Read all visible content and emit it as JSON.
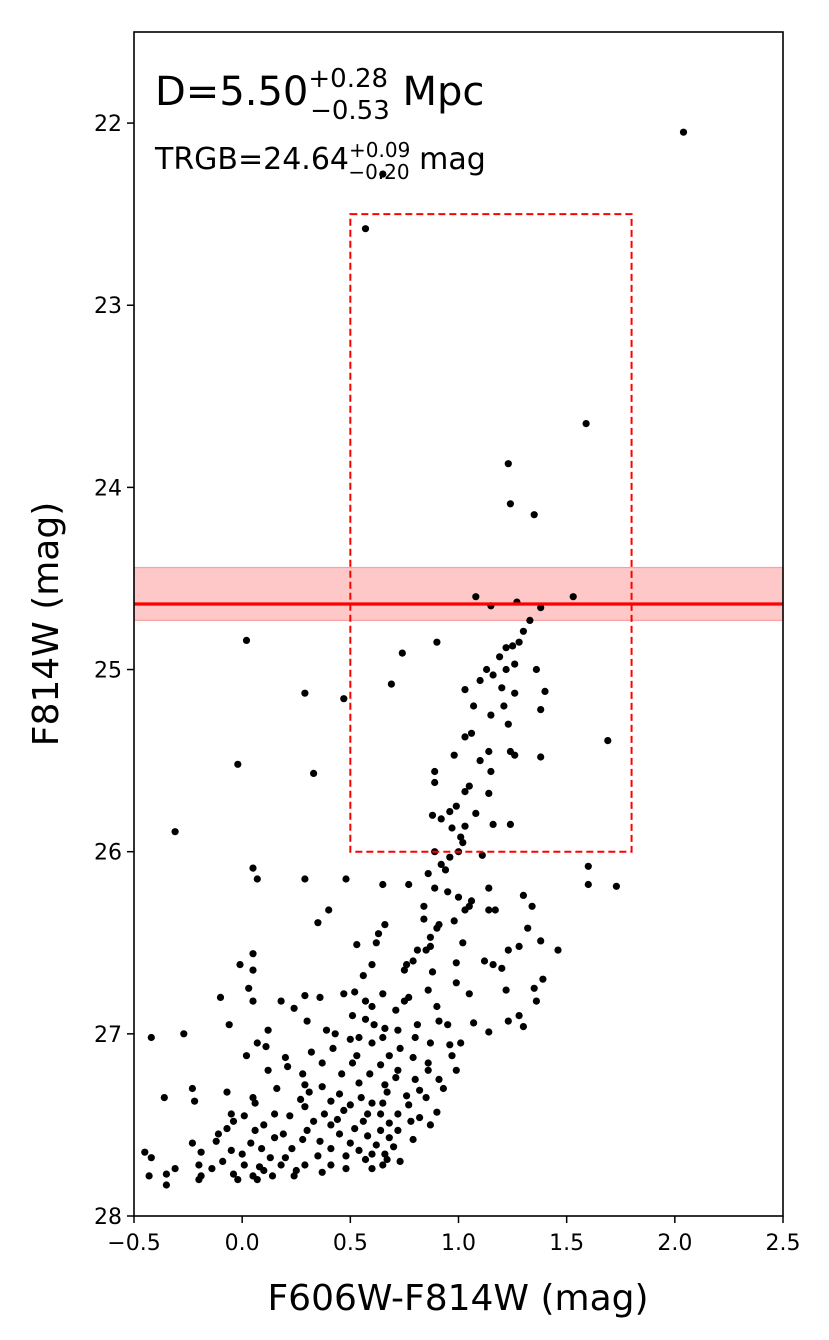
{
  "chart_data": {
    "type": "scatter",
    "title": "",
    "xlabel": "F606W-F814W (mag)",
    "ylabel": "F814W (mag)",
    "xlim": [
      -0.5,
      2.5
    ],
    "ylim": [
      28,
      21.5
    ],
    "y_inverted": true,
    "grid": false,
    "x_ticks": [
      -0.5,
      0.0,
      0.5,
      1.0,
      1.5,
      2.0,
      2.5
    ],
    "x_tick_labels": [
      "−0.5",
      "0.0",
      "0.5",
      "1.0",
      "1.5",
      "2.0",
      "2.5"
    ],
    "y_ticks": [
      22,
      23,
      24,
      25,
      26,
      27,
      28
    ],
    "y_tick_labels": [
      "22",
      "23",
      "24",
      "25",
      "26",
      "27",
      "28"
    ],
    "annotations": {
      "distance": {
        "prefix": "D=5.50",
        "sup": "+0.28",
        "sub": "−0.53",
        "suffix": " Mpc"
      },
      "trgb": {
        "prefix": "TRGB=24.64",
        "sup": "+0.09",
        "sub": "−0.20",
        "suffix": " mag"
      }
    },
    "trgb_line": {
      "y": 24.64,
      "color": "#ff0000"
    },
    "trgb_band": {
      "y_lower": 24.44,
      "y_upper": 24.73,
      "color": "#ffc8c8"
    },
    "selection_box": {
      "x": [
        0.5,
        1.8
      ],
      "y": [
        22.5,
        26.0
      ],
      "color": "#ff0000",
      "style": "dashed"
    },
    "marker_color": "#000000",
    "points": [
      [
        2.04,
        22.05
      ],
      [
        0.65,
        22.28
      ],
      [
        0.57,
        22.58
      ],
      [
        1.59,
        23.65
      ],
      [
        1.23,
        23.87
      ],
      [
        1.24,
        24.09
      ],
      [
        1.35,
        24.15
      ],
      [
        1.08,
        24.6
      ],
      [
        1.53,
        24.6
      ],
      [
        1.27,
        24.63
      ],
      [
        1.15,
        24.65
      ],
      [
        1.38,
        24.66
      ],
      [
        1.33,
        24.73
      ],
      [
        1.3,
        24.79
      ],
      [
        1.28,
        24.85
      ],
      [
        1.25,
        24.87
      ],
      [
        0.02,
        24.84
      ],
      [
        0.9,
        24.85
      ],
      [
        1.22,
        24.88
      ],
      [
        1.19,
        24.93
      ],
      [
        1.26,
        24.97
      ],
      [
        1.22,
        25.0
      ],
      [
        1.13,
        25.0
      ],
      [
        1.16,
        25.03
      ],
      [
        1.1,
        25.06
      ],
      [
        1.36,
        25.0
      ],
      [
        0.74,
        24.91
      ],
      [
        0.69,
        25.08
      ],
      [
        0.29,
        25.13
      ],
      [
        0.47,
        25.16
      ],
      [
        1.03,
        25.11
      ],
      [
        1.2,
        25.1
      ],
      [
        1.4,
        25.12
      ],
      [
        1.26,
        25.13
      ],
      [
        1.21,
        25.2
      ],
      [
        1.38,
        25.22
      ],
      [
        1.07,
        25.2
      ],
      [
        1.15,
        25.25
      ],
      [
        1.23,
        25.3
      ],
      [
        1.03,
        25.37
      ],
      [
        1.06,
        25.35
      ],
      [
        1.69,
        25.39
      ],
      [
        1.24,
        25.45
      ],
      [
        1.14,
        25.45
      ],
      [
        0.98,
        25.47
      ],
      [
        1.38,
        25.48
      ],
      [
        1.26,
        25.47
      ],
      [
        1.1,
        25.5
      ],
      [
        -0.02,
        25.52
      ],
      [
        1.15,
        25.56
      ],
      [
        0.33,
        25.57
      ],
      [
        0.89,
        25.56
      ],
      [
        0.89,
        25.62
      ],
      [
        1.05,
        25.64
      ],
      [
        1.03,
        25.67
      ],
      [
        0.99,
        25.75
      ],
      [
        0.96,
        25.78
      ],
      [
        1.14,
        25.68
      ],
      [
        0.92,
        25.82
      ],
      [
        0.88,
        25.8
      ],
      [
        1.03,
        25.86
      ],
      [
        0.97,
        25.87
      ],
      [
        1.16,
        25.85
      ],
      [
        1.24,
        25.85
      ],
      [
        1.08,
        25.79
      ],
      [
        1.01,
        25.92
      ],
      [
        1.02,
        25.95
      ],
      [
        -0.31,
        25.89
      ],
      [
        1.0,
        26.0
      ],
      [
        0.89,
        26.0
      ],
      [
        1.11,
        26.02
      ],
      [
        0.96,
        26.03
      ],
      [
        0.92,
        26.07
      ],
      [
        1.6,
        26.08
      ],
      [
        0.05,
        26.09
      ],
      [
        0.94,
        26.1
      ],
      [
        0.86,
        26.12
      ],
      [
        0.07,
        26.15
      ],
      [
        0.29,
        26.15
      ],
      [
        0.48,
        26.15
      ],
      [
        0.65,
        26.18
      ],
      [
        0.77,
        26.18
      ],
      [
        0.89,
        26.2
      ],
      [
        0.95,
        26.22
      ],
      [
        1.0,
        26.25
      ],
      [
        1.6,
        26.18
      ],
      [
        1.73,
        26.19
      ],
      [
        1.14,
        26.2
      ],
      [
        1.06,
        26.27
      ],
      [
        1.05,
        26.3
      ],
      [
        1.03,
        26.32
      ],
      [
        0.84,
        26.3
      ],
      [
        1.3,
        26.24
      ],
      [
        1.14,
        26.32
      ],
      [
        1.17,
        26.32
      ],
      [
        0.4,
        26.32
      ],
      [
        0.35,
        26.39
      ],
      [
        0.84,
        26.37
      ],
      [
        0.98,
        26.38
      ],
      [
        1.34,
        26.3
      ],
      [
        0.66,
        26.4
      ],
      [
        0.91,
        26.4
      ],
      [
        0.9,
        26.42
      ],
      [
        0.63,
        26.45
      ],
      [
        0.87,
        26.47
      ],
      [
        1.32,
        26.42
      ],
      [
        0.62,
        26.5
      ],
      [
        0.87,
        26.52
      ],
      [
        1.02,
        26.5
      ],
      [
        1.38,
        26.49
      ],
      [
        0.81,
        26.54
      ],
      [
        0.85,
        26.54
      ],
      [
        1.23,
        26.54
      ],
      [
        1.28,
        26.52
      ],
      [
        1.46,
        26.54
      ],
      [
        0.53,
        26.51
      ],
      [
        0.05,
        26.56
      ],
      [
        0.79,
        26.6
      ],
      [
        0.99,
        26.61
      ],
      [
        1.12,
        26.6
      ],
      [
        0.76,
        26.62
      ],
      [
        -0.01,
        26.62
      ],
      [
        0.6,
        26.62
      ],
      [
        0.75,
        26.65
      ],
      [
        0.88,
        26.66
      ],
      [
        0.56,
        26.68
      ],
      [
        0.05,
        26.65
      ],
      [
        1.16,
        26.62
      ],
      [
        1.2,
        26.64
      ],
      [
        0.99,
        26.72
      ],
      [
        1.39,
        26.7
      ],
      [
        0.86,
        26.76
      ],
      [
        0.52,
        26.77
      ],
      [
        0.65,
        26.78
      ],
      [
        1.05,
        26.78
      ],
      [
        0.77,
        26.8
      ],
      [
        0.75,
        26.82
      ],
      [
        1.35,
        26.75
      ],
      [
        1.22,
        26.76
      ],
      [
        0.57,
        26.82
      ],
      [
        0.47,
        26.78
      ],
      [
        0.36,
        26.8
      ],
      [
        0.29,
        26.79
      ],
      [
        0.03,
        26.75
      ],
      [
        0.05,
        26.82
      ],
      [
        0.18,
        26.82
      ],
      [
        -0.1,
        26.8
      ],
      [
        0.6,
        26.85
      ],
      [
        0.9,
        26.85
      ],
      [
        0.71,
        26.87
      ],
      [
        1.36,
        26.82
      ],
      [
        0.24,
        26.86
      ],
      [
        0.51,
        26.9
      ],
      [
        0.57,
        26.92
      ],
      [
        0.3,
        26.93
      ],
      [
        0.61,
        26.95
      ],
      [
        0.81,
        26.95
      ],
      [
        0.66,
        26.97
      ],
      [
        0.72,
        26.98
      ],
      [
        0.91,
        26.93
      ],
      [
        0.95,
        26.95
      ],
      [
        1.07,
        26.94
      ],
      [
        1.23,
        26.93
      ],
      [
        1.28,
        26.9
      ],
      [
        1.3,
        26.96
      ],
      [
        0.39,
        26.98
      ],
      [
        -0.06,
        26.95
      ],
      [
        0.12,
        26.98
      ],
      [
        1.14,
        26.99
      ],
      [
        0.43,
        27.0
      ],
      [
        0.5,
        27.03
      ],
      [
        0.54,
        27.02
      ],
      [
        0.65,
        27.02
      ],
      [
        0.8,
        27.02
      ],
      [
        0.87,
        27.05
      ],
      [
        0.96,
        27.06
      ],
      [
        1.01,
        27.05
      ],
      [
        0.73,
        27.08
      ],
      [
        0.6,
        27.05
      ],
      [
        0.07,
        27.05
      ],
      [
        0.11,
        27.07
      ],
      [
        -0.42,
        27.02
      ],
      [
        -0.27,
        27.0
      ],
      [
        0.42,
        27.08
      ],
      [
        0.32,
        27.1
      ],
      [
        0.53,
        27.12
      ],
      [
        0.68,
        27.12
      ],
      [
        0.79,
        27.13
      ],
      [
        0.97,
        27.12
      ],
      [
        0.02,
        27.12
      ],
      [
        0.2,
        27.13
      ],
      [
        0.51,
        27.16
      ],
      [
        0.64,
        27.17
      ],
      [
        0.86,
        27.16
      ],
      [
        0.37,
        27.16
      ],
      [
        0.21,
        27.18
      ],
      [
        0.72,
        27.2
      ],
      [
        0.86,
        27.2
      ],
      [
        0.99,
        27.2
      ],
      [
        0.12,
        27.2
      ],
      [
        0.28,
        27.22
      ],
      [
        0.46,
        27.22
      ],
      [
        0.59,
        27.22
      ],
      [
        0.71,
        27.24
      ],
      [
        0.8,
        27.25
      ],
      [
        0.91,
        27.25
      ],
      [
        0.54,
        27.27
      ],
      [
        0.66,
        27.28
      ],
      [
        0.29,
        27.28
      ],
      [
        0.37,
        27.29
      ],
      [
        0.16,
        27.3
      ],
      [
        0.82,
        27.31
      ],
      [
        0.93,
        27.3
      ],
      [
        0.67,
        27.32
      ],
      [
        0.45,
        27.33
      ],
      [
        0.76,
        27.34
      ],
      [
        0.55,
        27.35
      ],
      [
        0.85,
        27.35
      ],
      [
        0.41,
        27.37
      ],
      [
        0.6,
        27.38
      ],
      [
        0.65,
        27.38
      ],
      [
        0.77,
        27.39
      ],
      [
        0.5,
        27.39
      ],
      [
        0.31,
        27.32
      ],
      [
        0.27,
        27.36
      ],
      [
        -0.23,
        27.3
      ],
      [
        -0.07,
        27.32
      ],
      [
        0.05,
        27.35
      ],
      [
        0.06,
        27.38
      ],
      [
        -0.22,
        27.37
      ],
      [
        -0.36,
        27.35
      ],
      [
        0.29,
        27.4
      ],
      [
        0.47,
        27.42
      ],
      [
        0.58,
        27.44
      ],
      [
        0.64,
        27.44
      ],
      [
        0.72,
        27.44
      ],
      [
        0.82,
        27.46
      ],
      [
        0.9,
        27.43
      ],
      [
        0.38,
        27.44
      ],
      [
        0.15,
        27.44
      ],
      [
        0.01,
        27.45
      ],
      [
        -0.05,
        27.44
      ],
      [
        0.22,
        27.45
      ],
      [
        0.44,
        27.47
      ],
      [
        0.56,
        27.48
      ],
      [
        0.68,
        27.49
      ],
      [
        0.78,
        27.48
      ],
      [
        0.87,
        27.5
      ],
      [
        0.33,
        27.48
      ],
      [
        0.41,
        27.5
      ],
      [
        -0.04,
        27.48
      ],
      [
        0.1,
        27.5
      ],
      [
        0.52,
        27.52
      ],
      [
        0.64,
        27.53
      ],
      [
        0.72,
        27.53
      ],
      [
        0.3,
        27.53
      ],
      [
        0.19,
        27.55
      ],
      [
        0.06,
        27.53
      ],
      [
        -0.11,
        27.55
      ],
      [
        -0.07,
        27.52
      ],
      [
        0.45,
        27.55
      ],
      [
        0.58,
        27.56
      ],
      [
        0.68,
        27.57
      ],
      [
        0.79,
        27.58
      ],
      [
        0.36,
        27.59
      ],
      [
        0.28,
        27.58
      ],
      [
        0.15,
        27.57
      ],
      [
        -0.12,
        27.59
      ],
      [
        -0.23,
        27.6
      ],
      [
        0.04,
        27.6
      ],
      [
        0.5,
        27.6
      ],
      [
        0.62,
        27.61
      ],
      [
        0.7,
        27.62
      ],
      [
        0.41,
        27.63
      ],
      [
        0.23,
        27.63
      ],
      [
        0.09,
        27.63
      ],
      [
        -0.05,
        27.64
      ],
      [
        -0.19,
        27.65
      ],
      [
        -0.45,
        27.65
      ],
      [
        -0.42,
        27.68
      ],
      [
        0.54,
        27.64
      ],
      [
        0.6,
        27.66
      ],
      [
        0.66,
        27.66
      ],
      [
        0.48,
        27.67
      ],
      [
        0.35,
        27.67
      ],
      [
        0.2,
        27.68
      ],
      [
        0.13,
        27.68
      ],
      [
        0.0,
        27.66
      ],
      [
        -0.09,
        27.7
      ],
      [
        -0.2,
        27.72
      ],
      [
        0.57,
        27.69
      ],
      [
        0.67,
        27.69
      ],
      [
        0.73,
        27.7
      ],
      [
        0.41,
        27.72
      ],
      [
        0.29,
        27.72
      ],
      [
        0.18,
        27.72
      ],
      [
        0.08,
        27.73
      ],
      [
        0.01,
        27.72
      ],
      [
        -0.14,
        27.74
      ],
      [
        -0.31,
        27.74
      ],
      [
        0.48,
        27.74
      ],
      [
        0.6,
        27.74
      ],
      [
        0.65,
        27.72
      ],
      [
        0.25,
        27.75
      ],
      [
        0.37,
        27.76
      ],
      [
        0.1,
        27.75
      ],
      [
        -0.04,
        27.77
      ],
      [
        -0.19,
        27.78
      ],
      [
        -0.35,
        27.77
      ],
      [
        -0.43,
        27.78
      ],
      [
        0.05,
        27.78
      ],
      [
        0.14,
        27.78
      ],
      [
        0.24,
        27.78
      ],
      [
        -0.02,
        27.8
      ],
      [
        0.07,
        27.8
      ],
      [
        -0.2,
        27.8
      ],
      [
        -0.35,
        27.83
      ]
    ]
  }
}
